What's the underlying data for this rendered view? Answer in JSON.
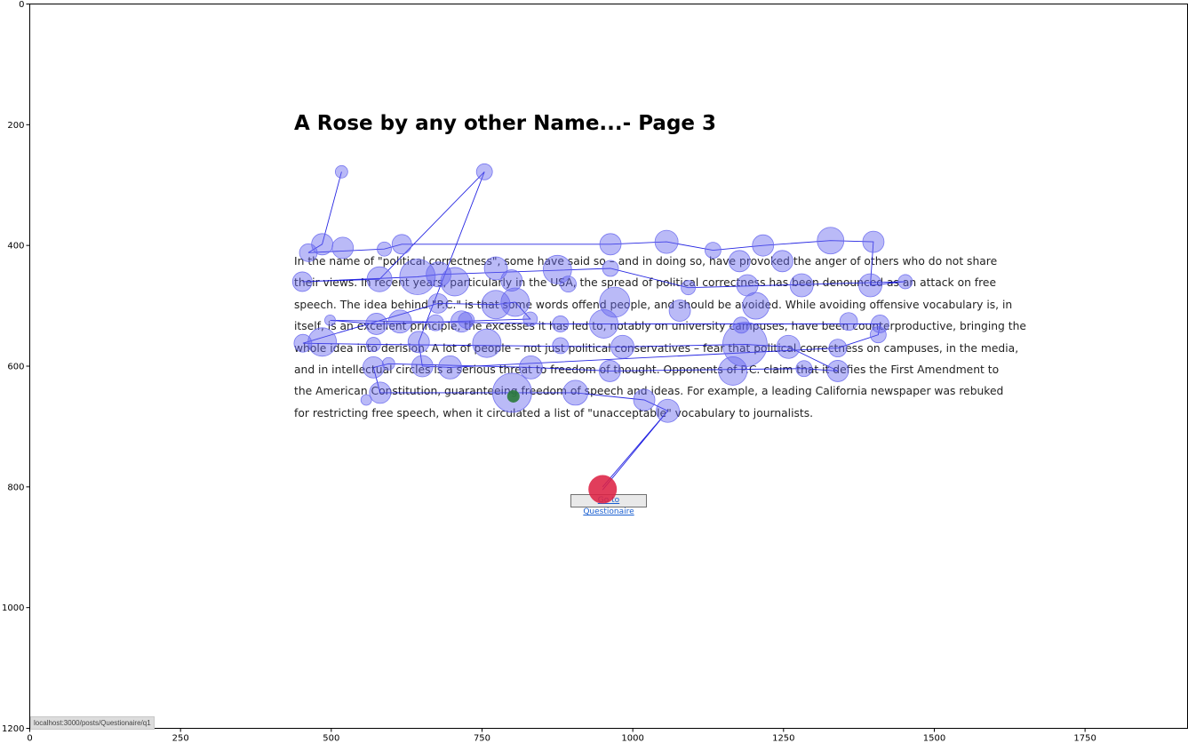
{
  "page": {
    "title": "A Rose by any other Name...- Page 3",
    "passage_lines": [
      "In the name of \"political correctness\", some have said so – and in doing so, have provoked the anger of others who do not share",
      "their views. In recent years, particularly in the USA, the spread of political correctness has been denounced as an attack on free",
      "speech. The idea behind \"P.C.\" is that some words offend people, and should be avoided. While avoiding offensive vocabulary is, in",
      "itself, is an excellent principle, the excesses it has led to, notably on university campuses, have been counterproductive, bringing the",
      "whole idea into derision. A lot of people – not just political conservatives – fear that political correctness on campuses, in the media,",
      "and in intellectual circles is a serious threat to freedom of thought. Opponents of P.C. claim that it defies the First Amendment to",
      "the American Constitution, guaranteeing freedom of speech and ideas. For example, a leading California newspaper was rebuked",
      "for restricting free speech, when it circulated a list of \"unacceptable\" vocabulary to journalists."
    ],
    "nav_button_label": "Go to Questionaire",
    "status_url": "localhost:3000/posts/Questionaire/q1"
  },
  "chart_data": {
    "type": "scatter",
    "title": "",
    "xlabel": "",
    "ylabel": "",
    "xlim": [
      0,
      1920
    ],
    "ylim": [
      1200,
      0
    ],
    "x_ticks": [
      "0",
      "250",
      "500",
      "750",
      "1000",
      "1250",
      "1500",
      "1750"
    ],
    "y_ticks": [
      "0",
      "200",
      "400",
      "600",
      "800",
      "1000",
      "1200"
    ],
    "colors": {
      "fixation": "#6666ee",
      "scanpath": "#0000dd",
      "start": "#2a7a3a",
      "end": "#dd2244"
    },
    "fixations": [
      {
        "x": 517,
        "y": 278,
        "r": 7
      },
      {
        "x": 754,
        "y": 278,
        "r": 9
      },
      {
        "x": 485,
        "y": 398,
        "r": 12
      },
      {
        "x": 462,
        "y": 412,
        "r": 10
      },
      {
        "x": 519,
        "y": 404,
        "r": 12
      },
      {
        "x": 588,
        "y": 406,
        "r": 8
      },
      {
        "x": 617,
        "y": 398,
        "r": 11
      },
      {
        "x": 963,
        "y": 398,
        "r": 12
      },
      {
        "x": 1056,
        "y": 394,
        "r": 13
      },
      {
        "x": 1133,
        "y": 408,
        "r": 9
      },
      {
        "x": 1216,
        "y": 400,
        "r": 12
      },
      {
        "x": 1328,
        "y": 392,
        "r": 15
      },
      {
        "x": 1399,
        "y": 394,
        "r": 12
      },
      {
        "x": 452,
        "y": 460,
        "r": 11
      },
      {
        "x": 580,
        "y": 456,
        "r": 14
      },
      {
        "x": 643,
        "y": 452,
        "r": 20
      },
      {
        "x": 678,
        "y": 448,
        "r": 14
      },
      {
        "x": 705,
        "y": 460,
        "r": 16
      },
      {
        "x": 773,
        "y": 438,
        "r": 13
      },
      {
        "x": 799,
        "y": 458,
        "r": 12
      },
      {
        "x": 875,
        "y": 440,
        "r": 16
      },
      {
        "x": 893,
        "y": 464,
        "r": 9
      },
      {
        "x": 963,
        "y": 438,
        "r": 9
      },
      {
        "x": 1092,
        "y": 470,
        "r": 8
      },
      {
        "x": 1177,
        "y": 426,
        "r": 12
      },
      {
        "x": 1190,
        "y": 466,
        "r": 12
      },
      {
        "x": 1248,
        "y": 426,
        "r": 12
      },
      {
        "x": 1280,
        "y": 466,
        "r": 13
      },
      {
        "x": 1394,
        "y": 466,
        "r": 13
      },
      {
        "x": 1452,
        "y": 460,
        "r": 8
      },
      {
        "x": 677,
        "y": 496,
        "r": 11
      },
      {
        "x": 773,
        "y": 498,
        "r": 16
      },
      {
        "x": 805,
        "y": 494,
        "r": 16
      },
      {
        "x": 970,
        "y": 494,
        "r": 17
      },
      {
        "x": 1078,
        "y": 508,
        "r": 12
      },
      {
        "x": 1204,
        "y": 500,
        "r": 15
      },
      {
        "x": 498,
        "y": 524,
        "r": 6
      },
      {
        "x": 575,
        "y": 530,
        "r": 12
      },
      {
        "x": 614,
        "y": 526,
        "r": 13
      },
      {
        "x": 673,
        "y": 528,
        "r": 9
      },
      {
        "x": 716,
        "y": 526,
        "r": 12
      },
      {
        "x": 724,
        "y": 524,
        "r": 9
      },
      {
        "x": 830,
        "y": 522,
        "r": 8
      },
      {
        "x": 880,
        "y": 530,
        "r": 9
      },
      {
        "x": 952,
        "y": 530,
        "r": 16
      },
      {
        "x": 1180,
        "y": 532,
        "r": 9
      },
      {
        "x": 1358,
        "y": 526,
        "r": 10
      },
      {
        "x": 1410,
        "y": 530,
        "r": 10
      },
      {
        "x": 1407,
        "y": 548,
        "r": 9
      },
      {
        "x": 453,
        "y": 562,
        "r": 10
      },
      {
        "x": 485,
        "y": 560,
        "r": 16
      },
      {
        "x": 570,
        "y": 564,
        "r": 8
      },
      {
        "x": 645,
        "y": 560,
        "r": 12
      },
      {
        "x": 758,
        "y": 562,
        "r": 16
      },
      {
        "x": 880,
        "y": 566,
        "r": 9
      },
      {
        "x": 983,
        "y": 568,
        "r": 13
      },
      {
        "x": 1186,
        "y": 564,
        "r": 25
      },
      {
        "x": 1258,
        "y": 568,
        "r": 13
      },
      {
        "x": 1340,
        "y": 570,
        "r": 10
      },
      {
        "x": 570,
        "y": 602,
        "r": 12
      },
      {
        "x": 595,
        "y": 596,
        "r": 7
      },
      {
        "x": 651,
        "y": 600,
        "r": 12
      },
      {
        "x": 697,
        "y": 602,
        "r": 13
      },
      {
        "x": 831,
        "y": 602,
        "r": 13
      },
      {
        "x": 962,
        "y": 608,
        "r": 12
      },
      {
        "x": 1166,
        "y": 608,
        "r": 16
      },
      {
        "x": 1284,
        "y": 604,
        "r": 9
      },
      {
        "x": 1340,
        "y": 608,
        "r": 12
      },
      {
        "x": 558,
        "y": 656,
        "r": 6
      },
      {
        "x": 581,
        "y": 644,
        "r": 12
      },
      {
        "x": 800,
        "y": 644,
        "r": 22
      },
      {
        "x": 905,
        "y": 644,
        "r": 14
      },
      {
        "x": 1019,
        "y": 656,
        "r": 12
      },
      {
        "x": 1058,
        "y": 674,
        "r": 13
      }
    ],
    "scanpath": [
      [
        517,
        278
      ],
      [
        485,
        398
      ],
      [
        462,
        412
      ],
      [
        588,
        406
      ],
      [
        617,
        398
      ],
      [
        963,
        398
      ],
      [
        1056,
        394
      ],
      [
        1133,
        408
      ],
      [
        1216,
        400
      ],
      [
        1328,
        392
      ],
      [
        1399,
        394
      ],
      [
        1394,
        466
      ],
      [
        1452,
        460
      ],
      [
        1092,
        470
      ],
      [
        963,
        438
      ],
      [
        678,
        448
      ],
      [
        643,
        452
      ],
      [
        452,
        460
      ],
      [
        580,
        456
      ],
      [
        754,
        278
      ],
      [
        645,
        560
      ],
      [
        651,
        600
      ],
      [
        697,
        602
      ],
      [
        1340,
        570
      ],
      [
        1407,
        548
      ],
      [
        1410,
        530
      ],
      [
        952,
        530
      ],
      [
        880,
        530
      ],
      [
        498,
        524
      ],
      [
        575,
        530
      ],
      [
        830,
        522
      ],
      [
        805,
        494
      ],
      [
        773,
        498
      ],
      [
        677,
        496
      ],
      [
        453,
        562
      ],
      [
        570,
        564
      ],
      [
        983,
        568
      ],
      [
        1186,
        564
      ],
      [
        1258,
        568
      ],
      [
        1340,
        608
      ],
      [
        1284,
        604
      ],
      [
        962,
        608
      ],
      [
        831,
        602
      ],
      [
        595,
        596
      ],
      [
        570,
        602
      ],
      [
        581,
        644
      ],
      [
        800,
        644
      ],
      [
        905,
        644
      ],
      [
        1019,
        656
      ],
      [
        1058,
        674
      ],
      [
        950,
        800
      ],
      [
        1058,
        674
      ],
      [
        950,
        805
      ]
    ],
    "start_point": {
      "x": 802,
      "y": 650,
      "r": 7
    },
    "end_point": {
      "x": 950,
      "y": 804,
      "r": 16
    }
  }
}
